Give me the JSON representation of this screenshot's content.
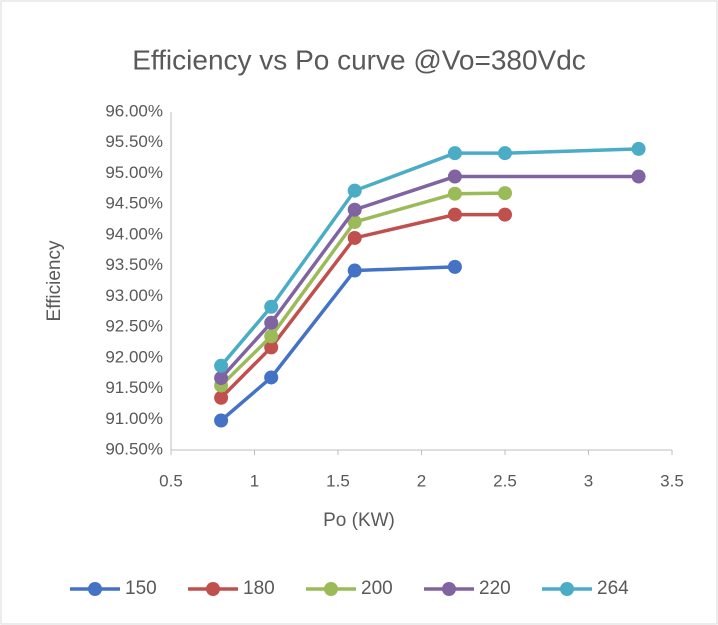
{
  "chart_data": {
    "type": "line",
    "title": "Efficiency vs Po curve @Vo=380Vdc",
    "x_label": "Po (KW)",
    "y_label": "Efficiency",
    "xlim": [
      0.5,
      3.5
    ],
    "xticks": [
      0.5,
      1,
      1.5,
      2,
      2.5,
      3,
      3.5
    ],
    "ylim": [
      90.5,
      96
    ],
    "yticks": [
      {
        "value": 90.5,
        "label": "90.50%"
      },
      {
        "value": 91,
        "label": "91.00%"
      },
      {
        "value": 91.5,
        "label": "91.50%"
      },
      {
        "value": 92,
        "label": "92.00%"
      },
      {
        "value": 92.5,
        "label": "92.50%"
      },
      {
        "value": 93,
        "label": "93.00%"
      },
      {
        "value": 93.5,
        "label": "93.50%"
      },
      {
        "value": 94,
        "label": "94.00%"
      },
      {
        "value": 94.5,
        "label": "94.50%"
      },
      {
        "value": 95,
        "label": "95.00%"
      },
      {
        "value": 95.5,
        "label": "95.50%"
      },
      {
        "value": 96,
        "label": "96.00%"
      }
    ],
    "grid": false,
    "legend": "bottom",
    "series": [
      {
        "name": "150",
        "color": "#4472c4",
        "x": [
          0.8,
          1.1,
          1.6,
          2.2
        ],
        "values": [
          90.98,
          91.68,
          93.42,
          93.48
        ]
      },
      {
        "name": "180",
        "color": "#c0504d",
        "x": [
          0.8,
          1.1,
          1.6,
          2.2,
          2.5
        ],
        "values": [
          91.35,
          92.17,
          93.95,
          94.33,
          94.33
        ]
      },
      {
        "name": "200",
        "color": "#9bbb59",
        "x": [
          0.8,
          1.1,
          1.6,
          2.2,
          2.5
        ],
        "values": [
          91.55,
          92.35,
          94.21,
          94.67,
          94.68
        ]
      },
      {
        "name": "220",
        "color": "#8064a2",
        "x": [
          0.8,
          1.1,
          1.6,
          2.2,
          3.3
        ],
        "values": [
          91.67,
          92.57,
          94.41,
          94.95,
          94.95
        ]
      },
      {
        "name": "264",
        "color": "#4bacc6",
        "x": [
          0.8,
          1.1,
          1.6,
          2.2,
          2.5,
          3.3
        ],
        "values": [
          91.87,
          92.83,
          94.72,
          95.33,
          95.33,
          95.4
        ]
      }
    ]
  }
}
